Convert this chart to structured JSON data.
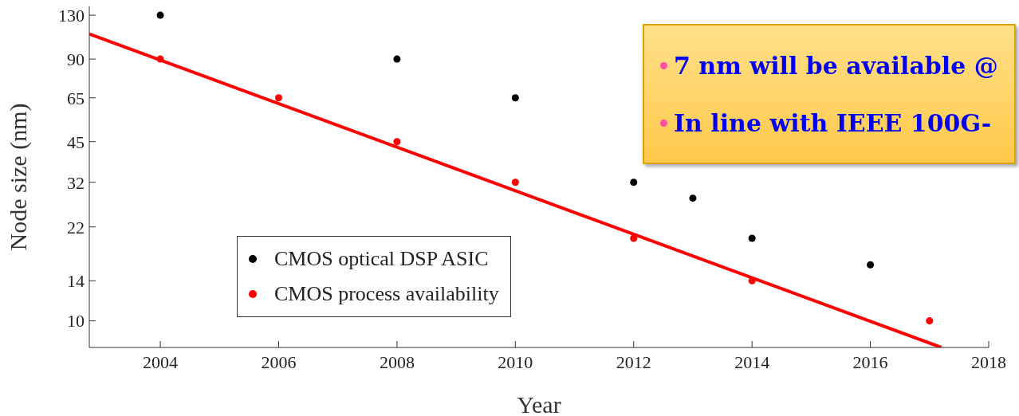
{
  "chart_data": {
    "type": "scatter",
    "xlabel": "Year",
    "ylabel": "Node size (nm)",
    "xlim": [
      2002.8,
      2018
    ],
    "xticks": [
      2004,
      2006,
      2008,
      2010,
      2012,
      2014,
      2016,
      2018
    ],
    "ylim": [
      8,
      140
    ],
    "yticks": [
      10,
      14,
      22,
      32,
      45,
      65,
      90,
      130
    ],
    "log": "y",
    "legend": "bottom left",
    "marker": "circle",
    "series": [
      {
        "name": "CMOS optical DSP ASIC",
        "color": "#000000",
        "x": [
          2004,
          2008,
          2010,
          2012,
          2013,
          2014,
          2016
        ],
        "values": [
          130,
          90,
          65,
          32,
          28,
          20,
          16
        ]
      },
      {
        "name": "CMOS process availability",
        "color": "#ff0000",
        "x": [
          2004,
          2006,
          2008,
          2010,
          2012,
          2014,
          2017
        ],
        "values": [
          90,
          65,
          45,
          32,
          20,
          14,
          10
        ]
      },
      {
        "type": "line",
        "marker": "none",
        "color": "#ff0000",
        "x": [
          2002.8,
          2017.2
        ],
        "values": [
          111,
          8
        ]
      }
    ],
    "annotations": [
      "7 nm will be available @",
      "In line with IEEE 100G-"
    ]
  }
}
